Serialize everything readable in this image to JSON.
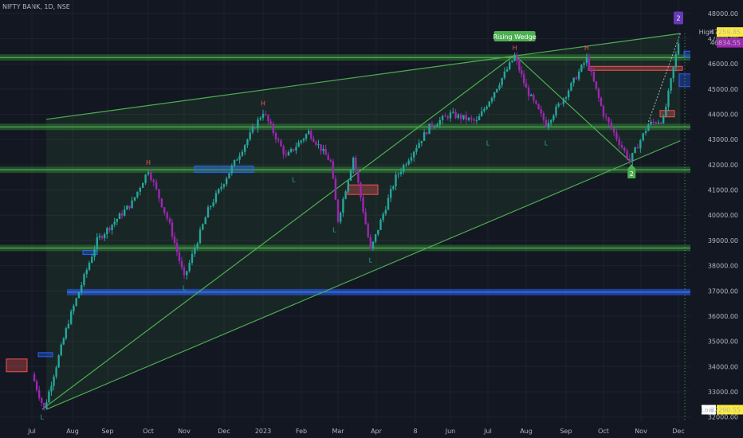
{
  "symbol": "NIFTY BANK, 1D, NSE",
  "colors": {
    "background": "#131722",
    "candle_up": "#26a69a",
    "candle_down": "#9c27b0",
    "wedge": "#4caf50",
    "zone_green": "#2e7d32",
    "zone_blue": "#2962ff",
    "box_red": "#ef5350",
    "axis_text": "#b2b5be",
    "high_tag": "#ffeb3b",
    "price_tag": "#9c27b0"
  },
  "chart_data": {
    "type": "candlestick",
    "title": "",
    "yaxis": {
      "ticks": [
        "32000.00",
        "33000.00",
        "34000.00",
        "35000.00",
        "36000.00",
        "37000.00",
        "38000.00",
        "39000.00",
        "40000.00",
        "41000.00",
        "42000.00",
        "43000.00",
        "44000.00",
        "45000.00",
        "46000.00",
        "47000.00",
        "48000.00"
      ],
      "range": [
        31800,
        48150
      ]
    },
    "xaxis": {
      "ticks": [
        "Jul",
        "Aug",
        "Sep",
        "Oct",
        "Nov",
        "Dec",
        "2023",
        "Feb",
        "Mar",
        "Apr",
        "8",
        "Jun",
        "Jul",
        "Aug",
        "Sep",
        "Oct",
        "Nov",
        "Dec"
      ]
    },
    "price_labels": {
      "high_label": "High",
      "high_value": "47259.85",
      "last_value": "46834.55",
      "low_label": "Low",
      "low_value": "32290.55"
    },
    "pivots": [
      {
        "text": "L",
        "date_index": 0.25,
        "price": 32290
      },
      {
        "text": "H",
        "date_index": 3.0,
        "price": 41800
      },
      {
        "text": "L",
        "date_index": 4.0,
        "price": 37400
      },
      {
        "text": "H",
        "date_index": 6.0,
        "price": 44150
      },
      {
        "text": "L",
        "date_index": 6.8,
        "price": 41700
      },
      {
        "text": "L",
        "date_index": 7.9,
        "price": 39700
      },
      {
        "text": "L",
        "date_index": 8.85,
        "price": 38500
      },
      {
        "text": "H",
        "date_index": 12.7,
        "price": 46350
      },
      {
        "text": "L",
        "date_index": 12.0,
        "price": 43150
      },
      {
        "text": "L",
        "date_index": 13.5,
        "price": 43150
      },
      {
        "text": "H",
        "date_index": 14.55,
        "price": 46350
      }
    ],
    "pattern": {
      "name": "Rising Wedge",
      "upper_line": [
        {
          "date_index": 0,
          "price": 43800
        },
        {
          "date_index": 17.05,
          "price": 47200
        }
      ],
      "lower_line": [
        {
          "date_index": 0,
          "price": 32300
        },
        {
          "date_index": 17.05,
          "price": 42950
        }
      ],
      "zigzag": [
        {
          "date_index": 0.25,
          "price": 32300
        },
        {
          "date_index": 12.7,
          "price": 46350
        },
        {
          "date_index": 15.7,
          "price": 42150
        }
      ]
    },
    "horizontal_levels": [
      46250,
      43500,
      41800,
      38700,
      36950
    ],
    "markers": [
      {
        "text": "2",
        "kind": "up",
        "date_index": 15.75,
        "price": 41900
      },
      {
        "text": "2",
        "kind": "top",
        "date_index": 17.0,
        "price": 47850
      }
    ],
    "candle_summary": {
      "open": 33700,
      "close": 46834.55,
      "waypoints": [
        [
          0,
          33700
        ],
        [
          0.3,
          32300
        ],
        [
          0.9,
          35800
        ],
        [
          1.7,
          39000
        ],
        [
          2.6,
          40500
        ],
        [
          3.0,
          41800
        ],
        [
          3.6,
          39600
        ],
        [
          4.0,
          37500
        ],
        [
          4.6,
          40200
        ],
        [
          5.2,
          41900
        ],
        [
          6.0,
          44100
        ],
        [
          6.6,
          42300
        ],
        [
          7.2,
          43300
        ],
        [
          7.8,
          42100
        ],
        [
          8.0,
          39800
        ],
        [
          8.4,
          42300
        ],
        [
          8.85,
          38600
        ],
        [
          9.5,
          41500
        ],
        [
          10.4,
          43500
        ],
        [
          11.0,
          44000
        ],
        [
          11.7,
          43700
        ],
        [
          12.7,
          46300
        ],
        [
          13.0,
          45000
        ],
        [
          13.5,
          43600
        ],
        [
          14.0,
          44800
        ],
        [
          14.55,
          46200
        ],
        [
          15.0,
          44000
        ],
        [
          15.7,
          42150
        ],
        [
          16.2,
          43600
        ],
        [
          16.6,
          43800
        ],
        [
          17.0,
          46834.55
        ]
      ]
    }
  }
}
